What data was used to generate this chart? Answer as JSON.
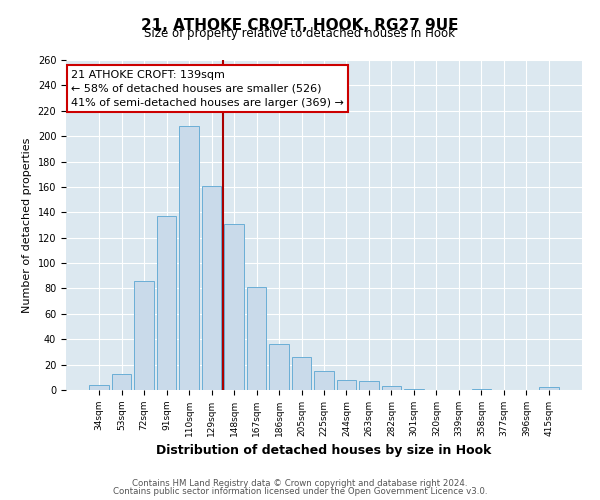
{
  "title": "21, ATHOKE CROFT, HOOK, RG27 9UE",
  "subtitle": "Size of property relative to detached houses in Hook",
  "xlabel": "Distribution of detached houses by size in Hook",
  "ylabel": "Number of detached properties",
  "bar_color": "#c9daea",
  "bar_edge_color": "#6aaed6",
  "categories": [
    "34sqm",
    "53sqm",
    "72sqm",
    "91sqm",
    "110sqm",
    "129sqm",
    "148sqm",
    "167sqm",
    "186sqm",
    "205sqm",
    "225sqm",
    "244sqm",
    "263sqm",
    "282sqm",
    "301sqm",
    "320sqm",
    "339sqm",
    "358sqm",
    "377sqm",
    "396sqm",
    "415sqm"
  ],
  "values": [
    4,
    13,
    86,
    137,
    208,
    161,
    131,
    81,
    36,
    26,
    15,
    8,
    7,
    3,
    1,
    0,
    0,
    1,
    0,
    0,
    2
  ],
  "ylim": [
    0,
    260
  ],
  "yticks": [
    0,
    20,
    40,
    60,
    80,
    100,
    120,
    140,
    160,
    180,
    200,
    220,
    240,
    260
  ],
  "vline_x": 5.5,
  "vline_color": "#aa0000",
  "annotation_title": "21 ATHOKE CROFT: 139sqm",
  "annotation_line1": "← 58% of detached houses are smaller (526)",
  "annotation_line2": "41% of semi-detached houses are larger (369) →",
  "annotation_box_color": "#ffffff",
  "annotation_box_edge_color": "#cc0000",
  "footer1": "Contains HM Land Registry data © Crown copyright and database right 2024.",
  "footer2": "Contains public sector information licensed under the Open Government Licence v3.0.",
  "background_color": "#ffffff",
  "plot_bg_color": "#dce8f0",
  "grid_color": "#ffffff"
}
